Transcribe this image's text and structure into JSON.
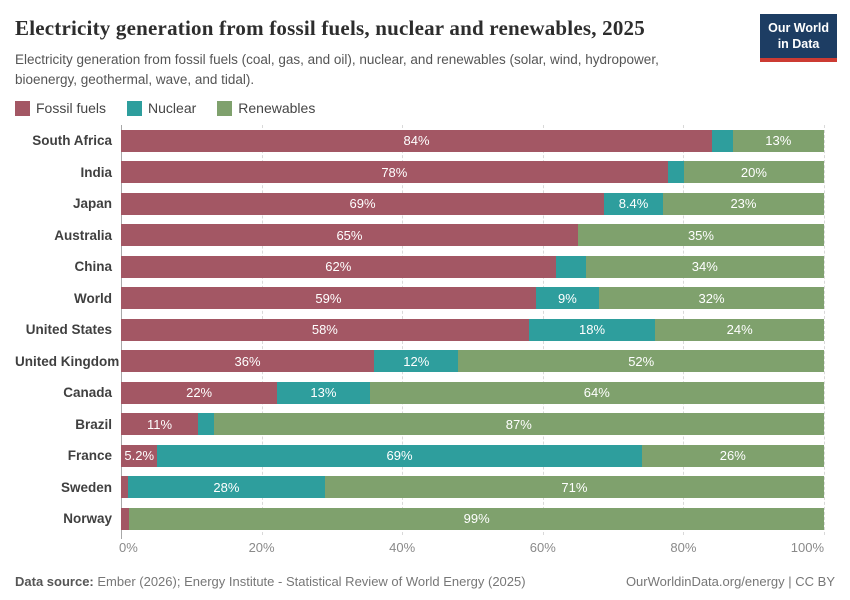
{
  "header": {
    "title": "Electricity generation from fossil fuels, nuclear and renewables, 2025",
    "subtitle": "Electricity generation from fossil fuels (coal, gas, and oil), nuclear, and renewables (solar, wind, hydropower, bioenergy, geothermal, wave, and tidal).",
    "logo": {
      "line1": "Our World",
      "line2": "in Data"
    }
  },
  "legend": [
    {
      "key": "fossil",
      "label": "Fossil fuels",
      "color": "#a35764"
    },
    {
      "key": "nuclear",
      "label": "Nuclear",
      "color": "#2e9e9d"
    },
    {
      "key": "renewables",
      "label": "Renewables",
      "color": "#7fa16d"
    }
  ],
  "chart_data": {
    "type": "bar",
    "variant": "stacked-horizontal",
    "unit": "%",
    "xlim": [
      0,
      100
    ],
    "x_ticks": [
      "0%",
      "20%",
      "40%",
      "60%",
      "80%",
      "100%"
    ],
    "grid": true,
    "legend_position": "top-left",
    "series_names": [
      "Fossil fuels",
      "Nuclear",
      "Renewables"
    ],
    "colors": {
      "fossil": "#a35764",
      "nuclear": "#2e9e9d",
      "renewables": "#7fa16d"
    },
    "rows": [
      {
        "country": "South Africa",
        "fossil": {
          "value": 84,
          "label": "84%"
        },
        "nuclear": {
          "value": 2.9,
          "label": ""
        },
        "renewables": {
          "value": 13,
          "label": "13%"
        }
      },
      {
        "country": "India",
        "fossil": {
          "value": 78,
          "label": "78%"
        },
        "nuclear": {
          "value": 2.3,
          "label": ""
        },
        "renewables": {
          "value": 20,
          "label": "20%"
        }
      },
      {
        "country": "Japan",
        "fossil": {
          "value": 69,
          "label": "69%"
        },
        "nuclear": {
          "value": 8.4,
          "label": "8.4%"
        },
        "renewables": {
          "value": 23,
          "label": "23%"
        }
      },
      {
        "country": "Australia",
        "fossil": {
          "value": 65,
          "label": "65%"
        },
        "nuclear": {
          "value": 0,
          "label": ""
        },
        "renewables": {
          "value": 35,
          "label": "35%"
        }
      },
      {
        "country": "China",
        "fossil": {
          "value": 62,
          "label": "62%"
        },
        "nuclear": {
          "value": 4.3,
          "label": ""
        },
        "renewables": {
          "value": 34,
          "label": "34%"
        }
      },
      {
        "country": "World",
        "fossil": {
          "value": 59,
          "label": "59%"
        },
        "nuclear": {
          "value": 9,
          "label": "9%"
        },
        "renewables": {
          "value": 32,
          "label": "32%"
        }
      },
      {
        "country": "United States",
        "fossil": {
          "value": 58,
          "label": "58%"
        },
        "nuclear": {
          "value": 18,
          "label": "18%"
        },
        "renewables": {
          "value": 24,
          "label": "24%"
        }
      },
      {
        "country": "United Kingdom",
        "fossil": {
          "value": 36,
          "label": "36%"
        },
        "nuclear": {
          "value": 12,
          "label": "12%"
        },
        "renewables": {
          "value": 52,
          "label": "52%"
        }
      },
      {
        "country": "Canada",
        "fossil": {
          "value": 22,
          "label": "22%"
        },
        "nuclear": {
          "value": 13,
          "label": "13%"
        },
        "renewables": {
          "value": 64,
          "label": "64%"
        }
      },
      {
        "country": "Brazil",
        "fossil": {
          "value": 11,
          "label": "11%"
        },
        "nuclear": {
          "value": 2.2,
          "label": ""
        },
        "renewables": {
          "value": 87,
          "label": "87%"
        }
      },
      {
        "country": "France",
        "fossil": {
          "value": 5.2,
          "label": "5.2%"
        },
        "nuclear": {
          "value": 69,
          "label": "69%"
        },
        "renewables": {
          "value": 26,
          "label": "26%"
        }
      },
      {
        "country": "Sweden",
        "fossil": {
          "value": 1.0,
          "label": ""
        },
        "nuclear": {
          "value": 28,
          "label": "28%"
        },
        "renewables": {
          "value": 71,
          "label": "71%"
        }
      },
      {
        "country": "Norway",
        "fossil": {
          "value": 1.2,
          "label": ""
        },
        "nuclear": {
          "value": 0,
          "label": ""
        },
        "renewables": {
          "value": 99,
          "label": "99%"
        }
      }
    ]
  },
  "footer": {
    "source_label": "Data source:",
    "source_text": " Ember (2026); Energy Institute - Statistical Review of World Energy (2025)",
    "credit": "OurWorldinData.org/energy | CC BY"
  }
}
